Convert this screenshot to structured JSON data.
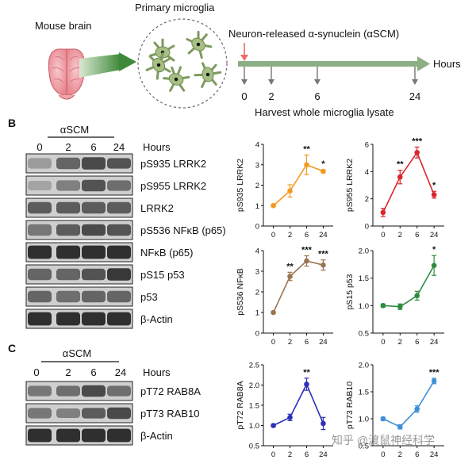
{
  "panel_a": {
    "brain_label": "Mouse brain",
    "microglia_label": "Primary microglia",
    "treatment": "Neuron-released α-synuclein (αSCM)",
    "time_unit": "Hours",
    "timepoints": [
      "0",
      "2",
      "6",
      "24"
    ],
    "harvest_label": "Harvest whole microglia lysate"
  },
  "panel_b": {
    "letter": "B",
    "treatment": "αSCM",
    "timepoints": [
      "0",
      "2",
      "6",
      "24"
    ],
    "time_unit": "Hours",
    "bands": [
      "pS935 LRRK2",
      "pS955 LRRK2",
      "LRRK2",
      "pS536 NFκB (p65)",
      "NFκB (p65)",
      "pS15 p53",
      "p53",
      "β-Actin"
    ]
  },
  "panel_c": {
    "letter": "C",
    "treatment": "αSCM",
    "timepoints": [
      "0",
      "2",
      "6",
      "24"
    ],
    "time_unit": "Hours",
    "bands": [
      "pT72 RAB8A",
      "pT73 RAB10",
      "β-Actin"
    ]
  },
  "watermark": "知乎 @渡鼠神经科学",
  "chart_data": [
    {
      "type": "line",
      "ylabel": "pS935 LRRK2",
      "color": "#f29a1f",
      "categories": [
        "0",
        "2",
        "6",
        "24"
      ],
      "values": [
        1.0,
        1.72,
        3.0,
        2.68
      ],
      "errors": [
        0.05,
        0.3,
        0.48,
        0.07
      ],
      "significance": [
        "",
        "",
        "**",
        "*"
      ],
      "ylim": [
        0,
        4
      ],
      "yticks": [
        "0",
        "1",
        "2",
        "3",
        "4"
      ]
    },
    {
      "type": "line",
      "ylabel": "pS955 LRRK2",
      "color": "#d9262c",
      "categories": [
        "0",
        "2",
        "6",
        "24"
      ],
      "values": [
        1.0,
        3.6,
        5.4,
        2.3
      ],
      "errors": [
        0.3,
        0.5,
        0.4,
        0.25
      ],
      "significance": [
        "",
        "**",
        "***",
        "*"
      ],
      "ylim": [
        0,
        6
      ],
      "yticks": [
        "0",
        "2",
        "4",
        "6"
      ]
    },
    {
      "type": "line",
      "ylabel": "pS536 NFκB",
      "color": "#9a7550",
      "categories": [
        "0",
        "2",
        "6",
        "24"
      ],
      "values": [
        1.0,
        2.75,
        3.5,
        3.3
      ],
      "errors": [
        0.05,
        0.2,
        0.25,
        0.25
      ],
      "significance": [
        "",
        "**",
        "***",
        "***"
      ],
      "ylim": [
        0,
        4
      ],
      "yticks": [
        "0",
        "1",
        "2",
        "3",
        "4"
      ]
    },
    {
      "type": "line",
      "ylabel": "pS15 p53",
      "color": "#2e8b3f",
      "categories": [
        "0",
        "2",
        "6",
        "24"
      ],
      "values": [
        1.0,
        0.98,
        1.18,
        1.73
      ],
      "errors": [
        0.03,
        0.05,
        0.08,
        0.18
      ],
      "significance": [
        "",
        "",
        "",
        "*"
      ],
      "ylim": [
        0.5,
        2.0
      ],
      "yticks": [
        "0.5",
        "1.0",
        "1.5",
        "2.0"
      ]
    },
    {
      "type": "line",
      "ylabel": "pT72 RAB8A",
      "color": "#2b2fb8",
      "categories": [
        "0",
        "2",
        "6",
        "24"
      ],
      "values": [
        1.0,
        1.2,
        2.02,
        1.05
      ],
      "errors": [
        0.03,
        0.08,
        0.15,
        0.15
      ],
      "significance": [
        "",
        "",
        "**",
        ""
      ],
      "ylim": [
        0.5,
        2.5
      ],
      "yticks": [
        "0.5",
        "1.0",
        "1.5",
        "2.0",
        "2.5"
      ]
    },
    {
      "type": "line",
      "ylabel": "pT73 RAB10",
      "color": "#3f8fd8",
      "categories": [
        "0",
        "2",
        "6",
        "24"
      ],
      "values": [
        1.0,
        0.85,
        1.18,
        1.7
      ],
      "errors": [
        0.03,
        0.04,
        0.06,
        0.05
      ],
      "significance": [
        "",
        "",
        "",
        "***"
      ],
      "ylim": [
        0.5,
        2.0
      ],
      "yticks": [
        "0.5",
        "1.0",
        "1.5",
        "2.0"
      ]
    }
  ]
}
